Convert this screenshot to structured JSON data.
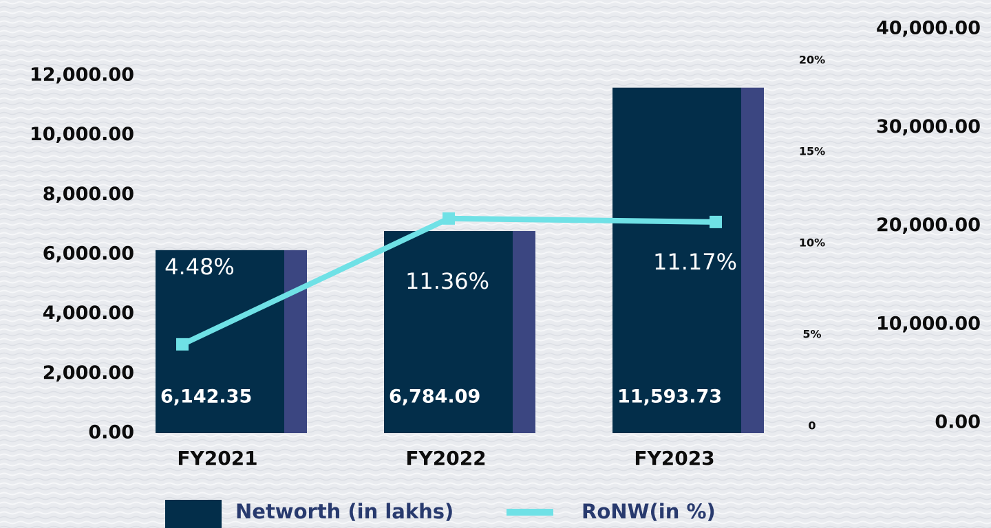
{
  "chart_data": {
    "type": "bar",
    "categories": [
      "FY2021",
      "FY2022",
      "FY2023"
    ],
    "series": [
      {
        "name": "Networth (in lakhs)",
        "type": "bar",
        "color": "#032e4a",
        "values": [
          6142.35,
          6784.09,
          11593.73
        ],
        "value_labels": [
          "6,142.35",
          "6,784.09",
          "11,593.73"
        ]
      },
      {
        "name": "RoNW(in %)",
        "type": "line",
        "axis": "y2",
        "color": "#6fe1e6",
        "values": [
          4.48,
          11.36,
          11.17
        ],
        "value_labels": [
          "4.48%",
          "11.36%",
          "11.17%"
        ]
      }
    ],
    "ylim": [
      0,
      12000
    ],
    "yticks": [
      {
        "value": 0,
        "label": "0.00"
      },
      {
        "value": 2000,
        "label": "2,000.00"
      },
      {
        "value": 4000,
        "label": "4,000.00"
      },
      {
        "value": 6000,
        "label": "6,000.00"
      },
      {
        "value": 8000,
        "label": "8,000.00"
      },
      {
        "value": 10000,
        "label": "10,000.00"
      },
      {
        "value": 12000,
        "label": "12,000.00"
      }
    ],
    "y2lim": [
      0,
      20
    ],
    "y2ticks": [
      0,
      {
        "value": 5,
        "label": "5%"
      },
      {
        "value": 10,
        "label": "10%"
      },
      {
        "value": 15,
        "label": "15%"
      },
      {
        "value": 20,
        "label": "20%"
      }
    ],
    "y3lim": [
      0,
      40000
    ],
    "y3ticks": [
      {
        "value": 0,
        "label": "0.00"
      },
      {
        "value": 10000,
        "label": "10,000.00"
      },
      {
        "value": 20000,
        "label": "20,000.00"
      },
      {
        "value": 30000,
        "label": "30,000.00"
      },
      {
        "value": 40000,
        "label": "40,000.00"
      }
    ]
  }
}
